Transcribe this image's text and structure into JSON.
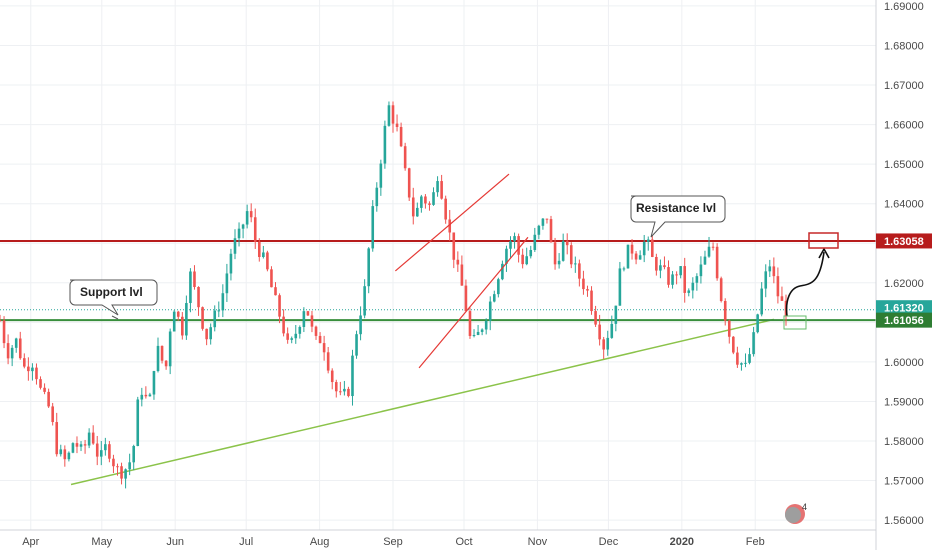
{
  "chart_data": {
    "type": "candlestick",
    "instrument_note": "",
    "x_ticks": [
      "Apr",
      "May",
      "Jun",
      "Jul",
      "Aug",
      "Sep",
      "Oct",
      "Nov",
      "Dec",
      "2020",
      "Feb"
    ],
    "y_ticks": [
      "1.69000",
      "1.68000",
      "1.67000",
      "1.66000",
      "1.65000",
      "1.64000",
      "1.63000",
      "1.62000",
      "1.61000",
      "1.60000",
      "1.59000",
      "1.58000",
      "1.57000",
      "1.56000"
    ],
    "ylim": [
      1.5575,
      1.6915
    ],
    "grid": true,
    "price_labels": [
      {
        "name": "resistance",
        "value": "1.63058",
        "color": "#b71c1c"
      },
      {
        "name": "last",
        "value": "1.61320",
        "color": "#26a69a"
      },
      {
        "name": "support",
        "value": "1.61056",
        "color": "#2e7d32"
      }
    ],
    "levels": [
      {
        "name": "resistance",
        "value": 1.63058,
        "color": "#b71c1c"
      },
      {
        "name": "support",
        "value": 1.61056,
        "color": "#388e3c"
      },
      {
        "name": "last",
        "value": 1.6132,
        "color": "#26a69a",
        "dotted": true
      }
    ],
    "annotations": [
      {
        "text": "Support lvl",
        "kind": "callout"
      },
      {
        "text": "Resistance lvl",
        "kind": "callout"
      }
    ],
    "trendline_points": [
      {
        "date": "2019-04-18",
        "price": 1.569
      },
      {
        "date": "2020-01-23",
        "price": 1.611
      }
    ],
    "channel_upper": [
      {
        "date": "2019-09-02",
        "price": 1.623
      },
      {
        "date": "2019-10-20",
        "price": 1.6475
      }
    ],
    "channel_lower": [
      {
        "date": "2019-09-12",
        "price": 1.5985
      },
      {
        "date": "2019-10-28",
        "price": 1.6315
      }
    ],
    "close_series": [
      [
        "2019-03-19",
        1.6105
      ],
      [
        "2019-03-22",
        1.602
      ],
      [
        "2019-03-26",
        1.6055
      ],
      [
        "2019-03-29",
        1.5985
      ],
      [
        "2019-04-02",
        1.6
      ],
      [
        "2019-04-05",
        1.593
      ],
      [
        "2019-04-09",
        1.588
      ],
      [
        "2019-04-12",
        1.578
      ],
      [
        "2019-04-16",
        1.5745
      ],
      [
        "2019-04-19",
        1.58
      ],
      [
        "2019-04-23",
        1.577
      ],
      [
        "2019-04-26",
        1.583
      ],
      [
        "2019-04-30",
        1.575
      ],
      [
        "2019-05-03",
        1.579
      ],
      [
        "2019-05-07",
        1.573
      ],
      [
        "2019-05-10",
        1.572
      ],
      [
        "2019-05-14",
        1.576
      ],
      [
        "2019-05-17",
        1.594
      ],
      [
        "2019-05-21",
        1.589
      ],
      [
        "2019-05-24",
        1.604
      ],
      [
        "2019-05-28",
        1.598
      ],
      [
        "2019-05-31",
        1.615
      ],
      [
        "2019-06-04",
        1.608
      ],
      [
        "2019-06-07",
        1.623
      ],
      [
        "2019-06-11",
        1.614
      ],
      [
        "2019-06-14",
        1.606
      ],
      [
        "2019-06-18",
        1.612
      ],
      [
        "2019-06-21",
        1.617
      ],
      [
        "2019-06-25",
        1.629
      ],
      [
        "2019-06-28",
        1.632
      ],
      [
        "2019-07-02",
        1.639
      ],
      [
        "2019-07-05",
        1.63
      ],
      [
        "2019-07-09",
        1.625
      ],
      [
        "2019-07-12",
        1.618
      ],
      [
        "2019-07-16",
        1.61
      ],
      [
        "2019-07-19",
        1.603
      ],
      [
        "2019-07-23",
        1.609
      ],
      [
        "2019-07-26",
        1.615
      ],
      [
        "2019-07-30",
        1.605
      ],
      [
        "2019-08-02",
        1.606
      ],
      [
        "2019-08-06",
        1.596
      ],
      [
        "2019-08-09",
        1.591
      ],
      [
        "2019-08-13",
        1.592
      ],
      [
        "2019-08-16",
        1.606
      ],
      [
        "2019-08-20",
        1.618
      ],
      [
        "2019-08-23",
        1.636
      ],
      [
        "2019-08-27",
        1.652
      ],
      [
        "2019-08-30",
        1.665
      ],
      [
        "2019-09-03",
        1.658
      ],
      [
        "2019-09-06",
        1.648
      ],
      [
        "2019-09-10",
        1.636
      ],
      [
        "2019-09-13",
        1.642
      ],
      [
        "2019-09-17",
        1.639
      ],
      [
        "2019-09-20",
        1.648
      ],
      [
        "2019-09-24",
        1.635
      ],
      [
        "2019-09-27",
        1.626
      ],
      [
        "2019-10-01",
        1.617
      ],
      [
        "2019-10-04",
        1.604
      ],
      [
        "2019-10-08",
        1.608
      ],
      [
        "2019-10-11",
        1.613
      ],
      [
        "2019-10-15",
        1.621
      ],
      [
        "2019-10-18",
        1.628
      ],
      [
        "2019-10-22",
        1.632
      ],
      [
        "2019-10-25",
        1.625
      ],
      [
        "2019-10-29",
        1.628
      ],
      [
        "2019-11-01",
        1.633
      ],
      [
        "2019-11-05",
        1.637
      ],
      [
        "2019-11-08",
        1.624
      ],
      [
        "2019-11-12",
        1.63
      ],
      [
        "2019-11-15",
        1.626
      ],
      [
        "2019-11-19",
        1.621
      ],
      [
        "2019-11-22",
        1.618
      ],
      [
        "2019-11-26",
        1.61
      ],
      [
        "2019-11-29",
        1.604
      ],
      [
        "2019-12-03",
        1.611
      ],
      [
        "2019-12-06",
        1.623
      ],
      [
        "2019-12-10",
        1.629
      ],
      [
        "2019-12-13",
        1.627
      ],
      [
        "2019-12-17",
        1.631
      ],
      [
        "2019-12-20",
        1.625
      ],
      [
        "2019-12-24",
        1.623
      ],
      [
        "2019-12-27",
        1.62
      ],
      [
        "2019-12-31",
        1.624
      ],
      [
        "2020-01-03",
        1.616
      ],
      [
        "2020-01-07",
        1.621
      ],
      [
        "2020-01-10",
        1.625
      ],
      [
        "2020-01-14",
        1.63
      ],
      [
        "2020-01-17",
        1.618
      ],
      [
        "2020-01-21",
        1.607
      ],
      [
        "2020-01-24",
        1.601
      ],
      [
        "2020-01-28",
        1.5985
      ],
      [
        "2020-01-31",
        1.605
      ],
      [
        "2020-02-04",
        1.619
      ],
      [
        "2020-02-07",
        1.625
      ],
      [
        "2020-02-11",
        1.616
      ],
      [
        "2020-02-14",
        1.613
      ]
    ]
  },
  "colors": {
    "up": "#26a69a",
    "down": "#ef5350",
    "grid": "#eef0f3",
    "axis_text": "#4a4a4a"
  },
  "badge": {
    "text": "4"
  }
}
